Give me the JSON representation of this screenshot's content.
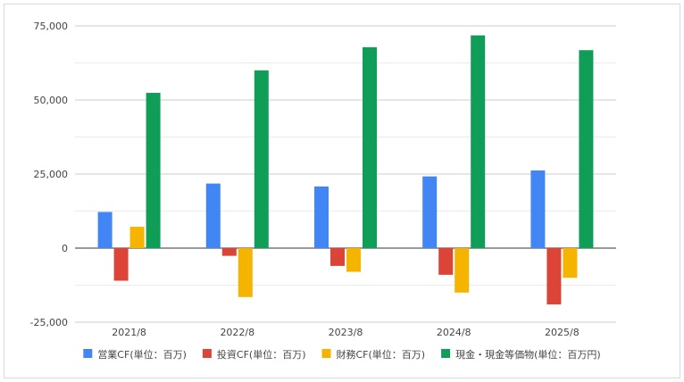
{
  "chart_data": {
    "type": "bar",
    "title": "",
    "xlabel": "",
    "ylabel": "",
    "categories": [
      "2021/8",
      "2022/8",
      "2023/8",
      "2024/8",
      "2025/8"
    ],
    "ylim": [
      -25000,
      75000
    ],
    "yticks": [
      75000,
      50000,
      25000,
      0,
      -25000
    ],
    "ytick_labels": [
      "75,000",
      "50,000",
      "25,000",
      "0",
      "-25,000"
    ],
    "grid": true,
    "legend_position": "bottom",
    "series": [
      {
        "name": "営業CF(単位：百万)",
        "color": "#4285F4",
        "values": [
          12200,
          21800,
          20800,
          24200,
          26200
        ]
      },
      {
        "name": "投資CF(単位：百万)",
        "color": "#DB4437",
        "values": [
          -11000,
          -2600,
          -6000,
          -9000,
          -19000
        ]
      },
      {
        "name": "財務CF(単位：百万)",
        "color": "#F4B400",
        "values": [
          7200,
          -16500,
          -8000,
          -15000,
          -10000
        ]
      },
      {
        "name": "現金・現金等価物(単位：百万円)",
        "color": "#0F9D58",
        "values": [
          52400,
          60000,
          67800,
          71800,
          66800
        ]
      }
    ]
  }
}
